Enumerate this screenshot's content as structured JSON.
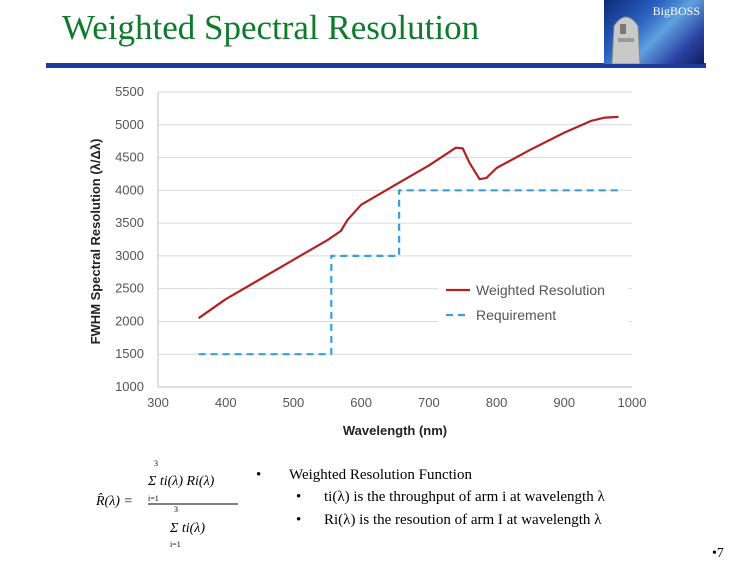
{
  "title": "Weighted Spectral Resolution",
  "logo_text": "BigBOSS",
  "bullets": [
    {
      "text": "Weighted Resolution Function"
    }
  ],
  "subbullets": [
    {
      "text": "ti(λ) is the throughput of arm i at wavelength λ"
    },
    {
      "text": "Ri(λ) is the resoution of arm I at wavelength λ"
    }
  ],
  "formula": {
    "lhs": "R̂(λ) =",
    "numerator": "Σ ti(λ) Ri(λ)",
    "denominator": "Σ ti(λ)",
    "sum_upper": "3",
    "sum_lower": "i=1"
  },
  "page_number": "7",
  "bullet_glyph": "•",
  "colors": {
    "title": "#0d7a2c",
    "rule": "#1c3a9a",
    "resolution": "#b22222",
    "requirement": "#3b9fd8"
  },
  "chart_data": {
    "type": "line",
    "xlabel": "Wavelength (nm)",
    "ylabel": "FWHM Spectral Resolution  (λ/Δλ)",
    "xlim": [
      300,
      1000
    ],
    "ylim": [
      1000,
      5500
    ],
    "xticks": [
      "300",
      "400",
      "500",
      "600",
      "700",
      "800",
      "900",
      "1000"
    ],
    "yticks": [
      "1000",
      "1500",
      "2000",
      "2500",
      "3000",
      "3500",
      "4000",
      "4500",
      "5000",
      "5500"
    ],
    "grid": "horizontal",
    "legend": "lower-right",
    "series": [
      {
        "name": "Weighted Resolution",
        "style": "solid",
        "x": [
          360,
          400,
          450,
          500,
          550,
          570,
          580,
          600,
          650,
          700,
          740,
          750,
          760,
          775,
          785,
          800,
          850,
          900,
          940,
          960,
          980
        ],
        "y": [
          2050,
          2340,
          2640,
          2940,
          3240,
          3380,
          3550,
          3780,
          4080,
          4380,
          4650,
          4640,
          4420,
          4170,
          4190,
          4340,
          4620,
          4880,
          5060,
          5110,
          5120
        ]
      },
      {
        "name": "Requirement",
        "style": "dashed",
        "x": [
          360,
          556,
          556,
          656,
          656,
          980
        ],
        "y": [
          1500,
          1500,
          3000,
          3000,
          4000,
          4000
        ]
      }
    ]
  }
}
